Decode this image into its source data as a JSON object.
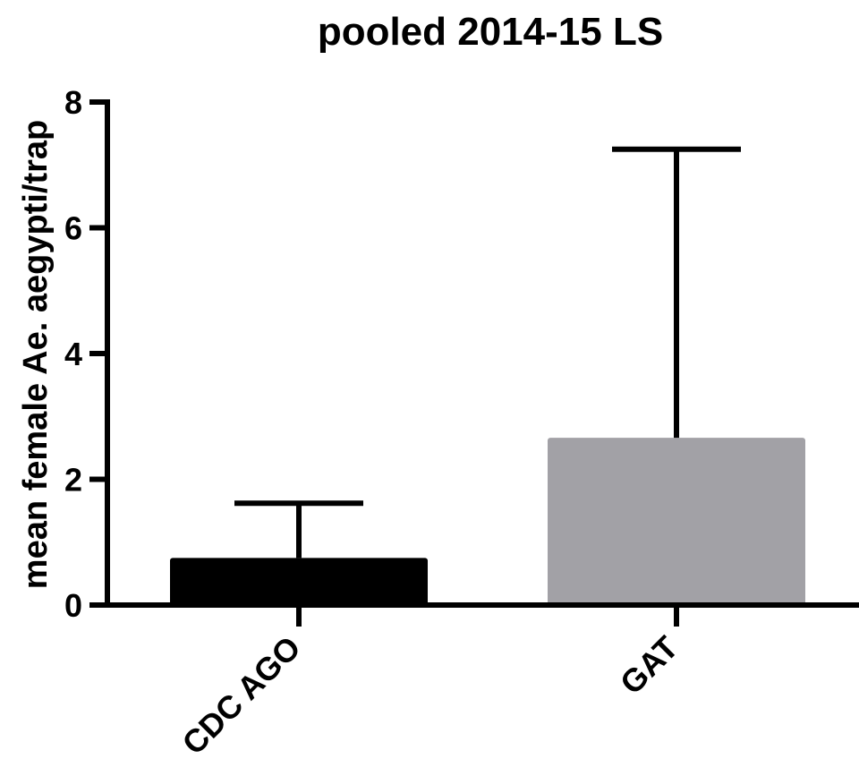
{
  "chart_data": {
    "type": "bar",
    "title": "pooled 2014-15 LS",
    "xlabel": "",
    "ylabel": "mean female Ae. aegypti/trap",
    "categories": [
      "CDC AGO",
      "GAT"
    ],
    "values": [
      0.75,
      2.66
    ],
    "error_upper": [
      1.62,
      7.25
    ],
    "ylim": [
      0,
      8
    ],
    "yticks": [
      "0",
      "2",
      "4",
      "6",
      "8"
    ],
    "bar_colors": [
      "#000000",
      "#a2a1a6"
    ],
    "grid": false,
    "legend": "none"
  }
}
